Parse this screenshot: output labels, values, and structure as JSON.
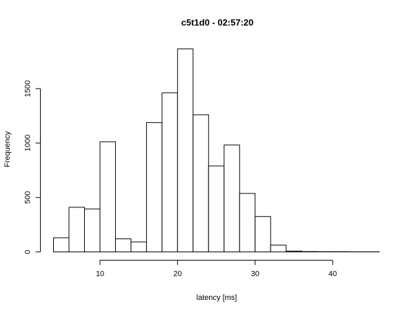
{
  "chart_data": {
    "type": "bar",
    "title": "c5t1d0 - 02:57:20",
    "xlabel": "latency [ms]",
    "ylabel": "Frequency",
    "xlim": [
      4,
      46
    ],
    "ylim": [
      0,
      1870
    ],
    "xticks": [
      "10",
      "20",
      "30",
      "40"
    ],
    "yticks": [
      "0",
      "500",
      "1000",
      "1500"
    ],
    "grid": false,
    "legend": "none",
    "bins": [
      {
        "x0": 4,
        "x1": 6,
        "count": 130
      },
      {
        "x0": 6,
        "x1": 8,
        "count": 410
      },
      {
        "x0": 8,
        "x1": 10,
        "count": 395
      },
      {
        "x0": 10,
        "x1": 12,
        "count": 1012
      },
      {
        "x0": 12,
        "x1": 14,
        "count": 120
      },
      {
        "x0": 14,
        "x1": 16,
        "count": 92
      },
      {
        "x0": 16,
        "x1": 18,
        "count": 1188
      },
      {
        "x0": 18,
        "x1": 20,
        "count": 1462
      },
      {
        "x0": 20,
        "x1": 22,
        "count": 1865
      },
      {
        "x0": 22,
        "x1": 24,
        "count": 1260
      },
      {
        "x0": 24,
        "x1": 26,
        "count": 790
      },
      {
        "x0": 26,
        "x1": 28,
        "count": 982
      },
      {
        "x0": 28,
        "x1": 30,
        "count": 537
      },
      {
        "x0": 30,
        "x1": 32,
        "count": 325
      },
      {
        "x0": 32,
        "x1": 34,
        "count": 62
      },
      {
        "x0": 34,
        "x1": 36,
        "count": 8
      },
      {
        "x0": 36,
        "x1": 38,
        "count": 3
      },
      {
        "x0": 38,
        "x1": 40,
        "count": 2
      },
      {
        "x0": 40,
        "x1": 42,
        "count": 2
      },
      {
        "x0": 42,
        "x1": 44,
        "count": 1
      },
      {
        "x0": 44,
        "x1": 46,
        "count": 1
      }
    ]
  }
}
